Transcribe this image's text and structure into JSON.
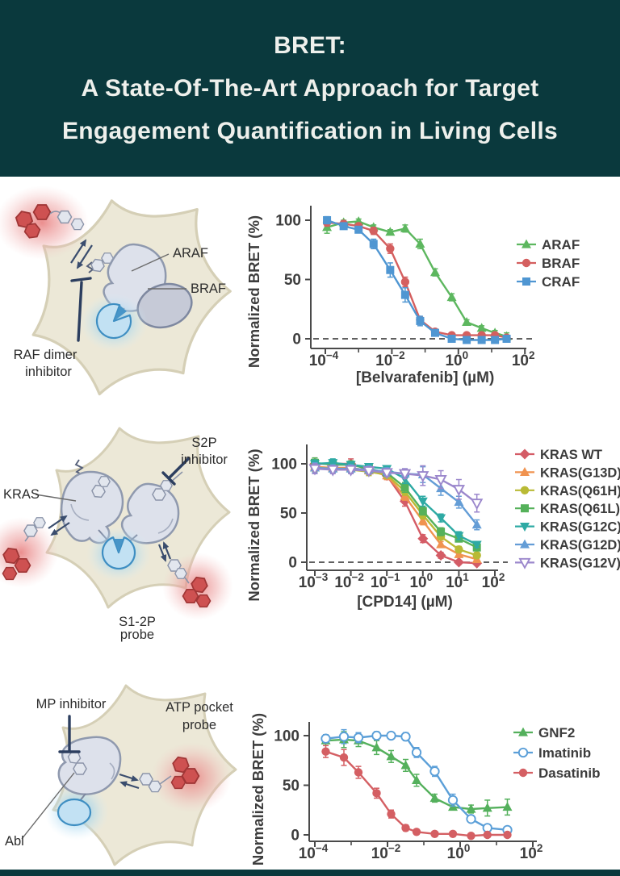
{
  "header": {
    "title_lines": [
      "BRET:",
      "A State-Of-The-Art Approach for Target",
      "Engagement Quantification in Living Cells"
    ]
  },
  "colors": {
    "header_bg": "#0a393d",
    "header_text": "#eef0ec",
    "footer_band": "#0a393d"
  },
  "diagrams": {
    "raf": {
      "labels": {
        "araf": "ARAF",
        "braf": "BRAF",
        "inhibitor_line1": "RAF dimer",
        "inhibitor_line2": "inhibitor"
      }
    },
    "kras": {
      "labels": {
        "kras": "KRAS",
        "inhibitor_line1": "S2P",
        "inhibitor_line2": "inhibitor",
        "probe_line1": "S1-2P",
        "probe_line2": "probe"
      }
    },
    "abl": {
      "labels": {
        "inhibitor": "MP inhibitor",
        "probe_line1": "ATP pocket",
        "probe_line2": "probe",
        "abl": "Abl"
      }
    }
  },
  "chart_data": [
    {
      "type": "line",
      "title": "",
      "xlabel": "[Belvarafenib] (µM)",
      "ylabel": "Normalized BRET (%)",
      "x_scale": "log10",
      "x_tick_exponents": [
        -4,
        -2,
        0,
        2
      ],
      "y_ticks": [
        0,
        50,
        100
      ],
      "ylim": [
        -10,
        112
      ],
      "zero_line_dashed": true,
      "legend_position": "right",
      "series": [
        {
          "name": "ARAF",
          "color": "#5db75f",
          "marker": "triangle-up",
          "open": false,
          "x_log10": [
            -3.95,
            -3.45,
            -3.0,
            -2.55,
            -2.05,
            -1.6,
            -1.15,
            -0.7,
            -0.2,
            0.25,
            0.7,
            1.1,
            1.45
          ],
          "y": [
            94,
            98,
            99,
            94,
            90,
            93,
            80,
            56,
            35,
            14,
            9,
            5,
            2
          ],
          "yerr": [
            5,
            2,
            2,
            2,
            2,
            3,
            4,
            3,
            3,
            2,
            2,
            2,
            3
          ]
        },
        {
          "name": "BRAF",
          "color": "#d45f5f",
          "marker": "circle",
          "open": false,
          "x_log10": [
            -3.95,
            -3.45,
            -3.0,
            -2.55,
            -2.05,
            -1.6,
            -1.15,
            -0.7,
            -0.2,
            0.25,
            0.7,
            1.1,
            1.45
          ],
          "y": [
            98,
            97,
            95,
            91,
            76,
            48,
            16,
            6,
            3,
            3,
            3,
            3,
            1
          ],
          "yerr": [
            3,
            2,
            2,
            3,
            4,
            4,
            2,
            2,
            1,
            1,
            1,
            1,
            2
          ]
        },
        {
          "name": "CRAF",
          "color": "#4f96d2",
          "marker": "square",
          "open": false,
          "x_log10": [
            -3.95,
            -3.45,
            -3.0,
            -2.55,
            -2.05,
            -1.6,
            -1.15,
            -0.7,
            -0.2,
            0.25,
            0.7,
            1.1,
            1.45
          ],
          "y": [
            100,
            95,
            92,
            80,
            58,
            37,
            15,
            5,
            0,
            -1,
            -1,
            -1,
            0
          ],
          "yerr": [
            3,
            2,
            2,
            4,
            6,
            6,
            4,
            2,
            1,
            1,
            1,
            1,
            1
          ]
        }
      ]
    },
    {
      "type": "line",
      "title": "",
      "xlabel": "[CPD14] (µM)",
      "ylabel": "Normalized BRET (%)",
      "x_scale": "log10",
      "x_tick_exponents": [
        -3,
        -2,
        -1,
        0,
        1,
        2
      ],
      "y_ticks": [
        0,
        50,
        100
      ],
      "ylim": [
        -10,
        115
      ],
      "zero_line_dashed": true,
      "legend_position": "right",
      "series": [
        {
          "name": "KRAS WT",
          "color": "#d45c66",
          "marker": "diamond",
          "open": false,
          "x_log10": [
            -3,
            -2.5,
            -2,
            -1.5,
            -1,
            -0.5,
            0,
            0.5,
            1,
            1.5
          ],
          "y": [
            100,
            100,
            100,
            94,
            88,
            62,
            24,
            7,
            0,
            -1
          ],
          "yerr": [
            6,
            4,
            5,
            4,
            4,
            5,
            4,
            3,
            2,
            2
          ]
        },
        {
          "name": "KRAS(G13D)",
          "color": "#f09350",
          "marker": "triangle-up",
          "open": false,
          "x_log10": [
            -3,
            -2.5,
            -2,
            -1.5,
            -1,
            -0.5,
            0,
            0.5,
            1,
            1.5
          ],
          "y": [
            97,
            96,
            96,
            93,
            88,
            67,
            42,
            18,
            8,
            3
          ],
          "yerr": [
            4,
            3,
            3,
            3,
            4,
            4,
            4,
            3,
            3,
            2
          ]
        },
        {
          "name": "KRAS(Q61H)",
          "color": "#b9ba35",
          "marker": "circle",
          "open": false,
          "x_log10": [
            -3,
            -2.5,
            -2,
            -1.5,
            -1,
            -0.5,
            0,
            0.5,
            1,
            1.5
          ],
          "y": [
            96,
            95,
            94,
            92,
            89,
            72,
            48,
            26,
            13,
            7
          ],
          "yerr": [
            4,
            4,
            3,
            4,
            4,
            4,
            4,
            3,
            3,
            3
          ]
        },
        {
          "name": "KRAS(Q61L)",
          "color": "#55b15a",
          "marker": "square",
          "open": false,
          "x_log10": [
            -3,
            -2.5,
            -2,
            -1.5,
            -1,
            -0.5,
            0,
            0.5,
            1,
            1.5
          ],
          "y": [
            101,
            99,
            99,
            95,
            91,
            76,
            52,
            31,
            24,
            15
          ],
          "yerr": [
            5,
            4,
            4,
            4,
            4,
            5,
            4,
            4,
            3,
            3
          ]
        },
        {
          "name": "KRAS(G12C)",
          "color": "#2eaaa4",
          "marker": "triangle-down",
          "open": false,
          "x_log10": [
            -3,
            -2.5,
            -2,
            -1.5,
            -1,
            -0.5,
            0,
            0.5,
            1,
            1.5
          ],
          "y": [
            100,
            101,
            99,
            97,
            95,
            85,
            62,
            45,
            27,
            18
          ],
          "yerr": [
            4,
            4,
            3,
            3,
            3,
            5,
            5,
            4,
            4,
            3
          ]
        },
        {
          "name": "KRAS(G12D)",
          "color": "#649dd6",
          "marker": "triangle-up",
          "open": false,
          "x_log10": [
            -3,
            -2.5,
            -2,
            -1.5,
            -1,
            -0.5,
            0,
            0.5,
            1,
            1.5
          ],
          "y": [
            96,
            95,
            95,
            94,
            92,
            90,
            89,
            75,
            61,
            38
          ],
          "yerr": [
            5,
            4,
            4,
            4,
            4,
            5,
            8,
            7,
            6,
            5
          ]
        },
        {
          "name": "KRAS(G12V)",
          "color": "#9b87cc",
          "marker": "triangle-down",
          "open": true,
          "x_log10": [
            -3,
            -2.5,
            -2,
            -1.5,
            -1,
            -0.5,
            0,
            0.5,
            1,
            1.5
          ],
          "y": [
            95,
            94,
            94,
            93,
            91,
            90,
            88,
            84,
            74,
            60
          ],
          "yerr": [
            5,
            4,
            4,
            4,
            4,
            5,
            10,
            9,
            10,
            9
          ]
        }
      ]
    },
    {
      "type": "line",
      "title": "",
      "xlabel": "",
      "ylabel": "Normalized BRET (%)",
      "x_scale": "log10",
      "x_tick_exponents": [
        -4,
        -2,
        0,
        2
      ],
      "y_ticks": [
        0,
        50,
        100
      ],
      "ylim": [
        -8,
        112
      ],
      "zero_line_dashed": false,
      "legend_position": "right",
      "series": [
        {
          "name": "GNF2",
          "color": "#54b05c",
          "marker": "triangle-up",
          "open": false,
          "x_log10": [
            -3.7,
            -3.2,
            -2.8,
            -2.3,
            -1.9,
            -1.5,
            -1.2,
            -0.7,
            -0.2,
            0.3,
            0.75,
            1.3
          ],
          "y": [
            95,
            96,
            95,
            88,
            79,
            70,
            55,
            37,
            28,
            26,
            27,
            28
          ],
          "yerr": [
            5,
            8,
            6,
            7,
            6,
            6,
            6,
            4,
            3,
            4,
            8,
            8
          ]
        },
        {
          "name": "Imatinib",
          "color": "#5b9fd8",
          "marker": "circle",
          "open": true,
          "x_log10": [
            -3.7,
            -3.2,
            -2.8,
            -2.3,
            -1.9,
            -1.5,
            -1.2,
            -0.7,
            -0.2,
            0.3,
            0.75,
            1.3
          ],
          "y": [
            97,
            99,
            98,
            100,
            100,
            99,
            83,
            64,
            35,
            16,
            7,
            5
          ],
          "yerr": [
            4,
            7,
            5,
            4,
            3,
            4,
            5,
            5,
            6,
            3,
            2,
            2
          ]
        },
        {
          "name": "Dasatinib",
          "color": "#d45f63",
          "marker": "circle",
          "open": false,
          "x_log10": [
            -3.7,
            -3.2,
            -2.8,
            -2.3,
            -1.9,
            -1.5,
            -1.2,
            -0.7,
            -0.2,
            0.3,
            0.75,
            1.3
          ],
          "y": [
            84,
            78,
            63,
            42,
            21,
            7,
            3,
            1,
            1,
            -1,
            0,
            0
          ],
          "yerr": [
            6,
            8,
            6,
            5,
            4,
            3,
            2,
            2,
            2,
            2,
            2,
            2
          ]
        }
      ]
    }
  ]
}
